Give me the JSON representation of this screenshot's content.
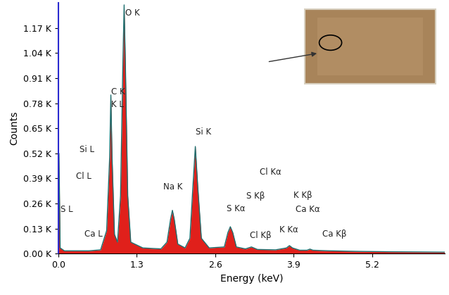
{
  "chart_data": {
    "type": "area",
    "x_label": "Energy (keV)",
    "y_label": "Counts",
    "x": [
      0.0,
      0.01,
      0.03,
      0.1,
      0.5,
      0.7,
      0.8,
      0.85,
      0.87,
      0.89,
      0.93,
      0.98,
      1.03,
      1.07,
      1.09,
      1.11,
      1.15,
      1.2,
      1.4,
      1.7,
      1.8,
      1.86,
      1.89,
      1.92,
      1.98,
      2.1,
      2.18,
      2.23,
      2.27,
      2.31,
      2.37,
      2.5,
      2.75,
      2.81,
      2.85,
      2.89,
      2.95,
      3.1,
      3.2,
      3.3,
      3.6,
      3.78,
      3.83,
      3.88,
      4.0,
      4.12,
      4.17,
      4.22,
      4.5,
      5.0,
      5.5,
      6.0,
      6.4
    ],
    "values": [
      0,
      520,
      30,
      15,
      15,
      20,
      120,
      500,
      823,
      500,
      100,
      60,
      300,
      1000,
      1290,
      1000,
      300,
      60,
      30,
      25,
      60,
      180,
      225,
      180,
      50,
      30,
      80,
      350,
      556,
      350,
      80,
      30,
      35,
      110,
      140,
      110,
      35,
      25,
      35,
      22,
      20,
      30,
      42,
      30,
      18,
      18,
      24,
      18,
      15,
      12,
      10,
      9,
      8
    ],
    "color": "#e0201b",
    "xlim": [
      0.0,
      6.4
    ],
    "xticks": [
      0.0,
      1.3,
      2.6,
      3.9,
      5.2
    ],
    "ylim": [
      0,
      1300
    ],
    "yticks": [
      {
        "value": 0,
        "label": "0.00 K"
      },
      {
        "value": 130,
        "label": "0.13 K"
      },
      {
        "value": 260,
        "label": "0.26 K"
      },
      {
        "value": 390,
        "label": "0.39 K"
      },
      {
        "value": 520,
        "label": "0.52 K"
      },
      {
        "value": 650,
        "label": "0.65 K"
      },
      {
        "value": 780,
        "label": "0.78 K"
      },
      {
        "value": 910,
        "label": "0.91 K"
      },
      {
        "value": 1040,
        "label": "1.04 K"
      },
      {
        "value": 1170,
        "label": "1.17 K"
      }
    ],
    "grid": false,
    "annotations": [
      {
        "text": "O K",
        "x": 1.11,
        "y": 1247
      },
      {
        "text": "C K",
        "x": 0.88,
        "y": 840
      },
      {
        "text": "K L",
        "x": 0.88,
        "y": 775
      },
      {
        "text": "Si L",
        "x": 0.35,
        "y": 540
      },
      {
        "text": "Cl L",
        "x": 0.29,
        "y": 400
      },
      {
        "text": "S L",
        "x": 0.04,
        "y": 228
      },
      {
        "text": "Ca L",
        "x": 0.43,
        "y": 103
      },
      {
        "text": "Na K",
        "x": 1.74,
        "y": 347
      },
      {
        "text": "Si K",
        "x": 2.28,
        "y": 630
      },
      {
        "text": "Cl Kα",
        "x": 3.34,
        "y": 424
      },
      {
        "text": "S Kβ",
        "x": 3.12,
        "y": 300
      },
      {
        "text": "S Kα",
        "x": 2.79,
        "y": 232
      },
      {
        "text": "Cl Kβ",
        "x": 3.17,
        "y": 96
      },
      {
        "text": "K Kα",
        "x": 3.66,
        "y": 122
      },
      {
        "text": "K Kβ",
        "x": 3.9,
        "y": 302
      },
      {
        "text": "Ca Kα",
        "x": 3.93,
        "y": 231
      },
      {
        "text": "Ca Kβ",
        "x": 4.37,
        "y": 100
      }
    ]
  }
}
